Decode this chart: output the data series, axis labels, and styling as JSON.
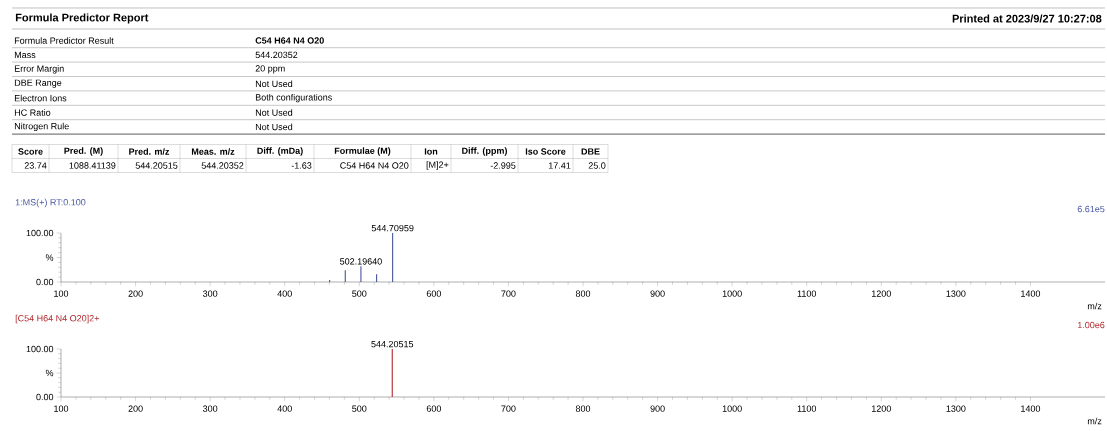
{
  "chart_data": [
    {
      "type": "other",
      "title": "Formula Predictor Report",
      "subtitle": "Printed at 2023/9/27 10:27:08",
      "annotations": [
        "Formula Predictor Result",
        "C54 H64 N4 O20",
        "Mass",
        "544.20352",
        "Error Margin",
        "20 ppm",
        "DBE Range",
        "Not Used",
        "Electron Ions",
        "Both configurations",
        "HC Ratio",
        "Not Used",
        "Nitrogen Rule",
        "Not Used",
        "Score",
        "Pred. (M)",
        "Pred. m/z",
        "Meas. m/z",
        "Diff. (mDa)",
        "Formulae (M)",
        "Ion",
        "Diff. (ppm)",
        "Iso Score",
        "DBE",
        "23.74",
        "1088.41139",
        "544.20515",
        "544.20352",
        "-1.63",
        "C54 H64 N4 O20",
        "[M]2+",
        "-2.995",
        "17.41",
        "25.0"
      ]
    },
    {
      "type": "bar",
      "title": "1:MS(+) RT:0.100",
      "xlabel": "m/z",
      "x": [
        460.2,
        481.2,
        502.1964,
        523.2,
        544.70959
      ],
      "series": [
        {
          "color": "#4655a0",
          "values": [
            4,
            24,
            32,
            16,
            100
          ]
        }
      ],
      "xlim": [
        100,
        1500
      ],
      "xticks": [
        100,
        200,
        300,
        400,
        500,
        600,
        700,
        800,
        900,
        1000,
        1100,
        1200,
        1300,
        1400
      ],
      "ylim": [
        0,
        100
      ],
      "yticks": [
        {
          "value": 0,
          "label": "0.00"
        },
        {
          "value": 50,
          "label": "%"
        },
        {
          "value": 100,
          "label": "100.00"
        }
      ],
      "annotations": [
        {
          "text": "544.70959",
          "x": 544.70959,
          "y": 100
        },
        {
          "text": "502.19640",
          "x": 502.1964,
          "y": 32
        },
        "6.61e5"
      ]
    },
    {
      "type": "bar",
      "title": "[C54 H64 N4 O20]2+",
      "xlabel": "m/z",
      "x": [
        544.20515
      ],
      "series": [
        {
          "color": "#b0282d",
          "values": [
            100
          ]
        }
      ],
      "xlim": [
        100,
        1500
      ],
      "xticks": [
        100,
        200,
        300,
        400,
        500,
        600,
        700,
        800,
        900,
        1000,
        1100,
        1200,
        1300,
        1400
      ],
      "ylim": [
        0,
        100
      ],
      "yticks": [
        {
          "value": 0,
          "label": "0.00"
        },
        {
          "value": 50,
          "label": "%"
        },
        {
          "value": 100,
          "label": "100.00"
        }
      ],
      "annotations": [
        {
          "text": "544.20515",
          "x": 544.20515,
          "y": 100
        },
        "1.00e6"
      ]
    }
  ]
}
